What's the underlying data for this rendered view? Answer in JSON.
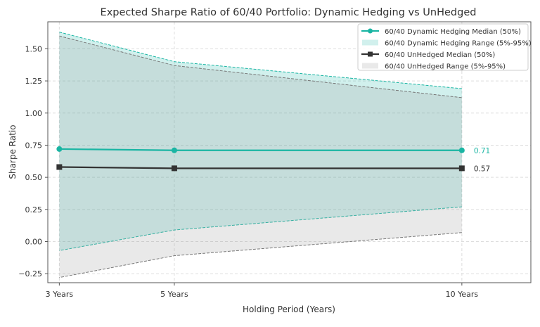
{
  "chart_data": {
    "type": "line",
    "title": "Expected Sharpe Ratio of 60/40 Portfolio: Dynamic Hedging vs UnHedged",
    "xlabel": "Holding Period (Years)",
    "ylabel": "Sharpe Ratio",
    "x": [
      3,
      5,
      10
    ],
    "x_tick_labels": [
      "3 Years",
      "5 Years",
      "10 Years"
    ],
    "xlim": [
      2.8,
      11.2
    ],
    "ylim": [
      -0.32,
      1.71
    ],
    "y_ticks": [
      -0.25,
      0.0,
      0.25,
      0.5,
      0.75,
      1.0,
      1.25,
      1.5
    ],
    "y_tick_labels": [
      "−0.25",
      "0.00",
      "0.25",
      "0.50",
      "0.75",
      "1.00",
      "1.25",
      "1.50"
    ],
    "grid": true,
    "legend_position": "top-right",
    "series": [
      {
        "name": "60/40 Dynamic Hedging Median (50%)",
        "kind": "line",
        "marker": "circle",
        "color": "#1ab5a3",
        "values": [
          0.72,
          0.71,
          0.71
        ]
      },
      {
        "name": "60/40 Dynamic Hedging Range (5%-95%)",
        "kind": "band",
        "color": "#1ab5a3",
        "lower": [
          -0.07,
          0.09,
          0.27
        ],
        "upper": [
          1.63,
          1.4,
          1.19
        ]
      },
      {
        "name": "60/40 UnHedged Median (50%)",
        "kind": "line",
        "marker": "square",
        "color": "#333333",
        "values": [
          0.58,
          0.57,
          0.57
        ]
      },
      {
        "name": "60/40 UnHedged Range (5%-95%)",
        "kind": "band",
        "color": "#888888",
        "lower": [
          -0.28,
          -0.11,
          0.07
        ],
        "upper": [
          1.6,
          1.37,
          1.12
        ]
      }
    ],
    "annotations": [
      {
        "text": "0.71",
        "x": 10,
        "y": 0.71,
        "color": "#1ab5a3"
      },
      {
        "text": "0.57",
        "x": 10,
        "y": 0.57,
        "color": "#333333"
      }
    ]
  }
}
